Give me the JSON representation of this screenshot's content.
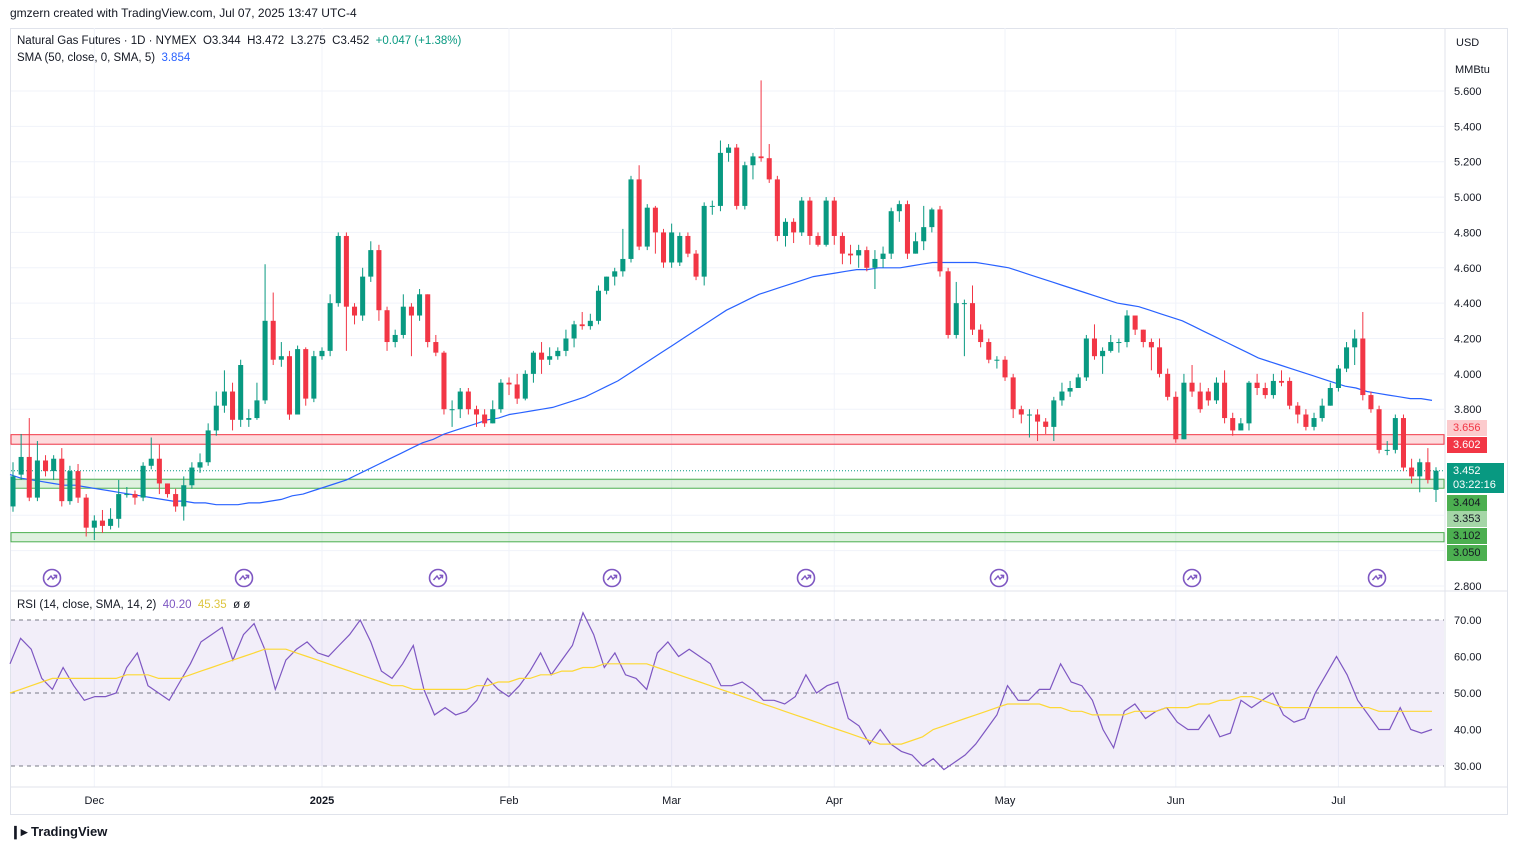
{
  "credit": "gmzern created with TradingView.com, Jul 07, 2025 13:47 UTC-4",
  "brand": "TradingView",
  "legend": {
    "symbol": "Natural Gas Futures · 1D · NYMEX",
    "open": "O3.344",
    "high": "H3.472",
    "low": "L3.275",
    "close": "C3.452",
    "change": "+0.047 (+1.38%)",
    "sma_label": "SMA (50, close, 0, SMA, 5)",
    "sma_value": "3.854",
    "rsi_label": "RSI (14, close, SMA, 14, 2)",
    "rsi_value": "40.20",
    "rsi_sma_value": "45.35",
    "rsi_extra": "ø ø"
  },
  "axis": {
    "currency": "USD",
    "unit": "MMBtu",
    "price_ticks": [
      "5.600",
      "5.400",
      "5.200",
      "5.000",
      "4.800",
      "4.600",
      "4.400",
      "4.200",
      "4.000",
      "3.800",
      "3.600",
      "3.400",
      "3.200",
      "3.000",
      "2.800"
    ],
    "rsi_ticks": [
      "70.00",
      "60.00",
      "50.00",
      "40.00",
      "30.00"
    ],
    "time_ticks": [
      "Dec",
      "2025",
      "Feb",
      "Mar",
      "Apr",
      "May",
      "Jun",
      "Jul"
    ]
  },
  "badges": {
    "price": "3.452",
    "countdown": "03:22:16",
    "zone_red_top": "3.656",
    "zone_red_bottom": "3.602",
    "zone_green_top": "3.404",
    "zone_green_bottom": "3.353",
    "zone_green2_top": "3.102",
    "zone_green2_bottom": "3.050"
  },
  "colors": {
    "up": "#089981",
    "down": "#f23645",
    "sma": "#2962ff",
    "rsi": "#7e57c2",
    "rsi_sma": "#fdd835",
    "zone_red": "#f23645",
    "zone_green": "#4caf50"
  },
  "chart_data": {
    "type": "candlestick",
    "y_range": [
      2.8,
      5.75
    ],
    "zones": [
      {
        "from": 3.602,
        "to": 3.656,
        "color": "red"
      },
      {
        "from": 3.353,
        "to": 3.404,
        "color": "green"
      },
      {
        "from": 3.05,
        "to": 3.102,
        "color": "green"
      }
    ],
    "candles": [
      [
        3.25,
        3.42,
        3.5,
        3.22
      ],
      [
        3.43,
        3.53,
        3.66,
        3.4
      ],
      [
        3.53,
        3.3,
        3.75,
        3.28
      ],
      [
        3.3,
        3.51,
        3.62,
        3.28
      ],
      [
        3.51,
        3.45,
        3.54,
        3.42
      ],
      [
        3.45,
        3.52,
        3.54,
        3.4
      ],
      [
        3.52,
        3.28,
        3.58,
        3.25
      ],
      [
        3.28,
        3.45,
        3.48,
        3.26
      ],
      [
        3.45,
        3.3,
        3.49,
        3.27
      ],
      [
        3.3,
        3.13,
        3.32,
        3.08
      ],
      [
        3.13,
        3.17,
        3.2,
        3.06
      ],
      [
        3.17,
        3.14,
        3.23,
        3.1
      ],
      [
        3.14,
        3.18,
        3.24,
        3.12
      ],
      [
        3.18,
        3.32,
        3.4,
        3.13
      ],
      [
        3.32,
        3.32,
        3.36,
        3.3
      ],
      [
        3.32,
        3.3,
        3.34,
        3.26
      ],
      [
        3.3,
        3.48,
        3.5,
        3.28
      ],
      [
        3.48,
        3.52,
        3.64,
        3.46
      ],
      [
        3.52,
        3.38,
        3.6,
        3.32
      ],
      [
        3.38,
        3.32,
        3.38,
        3.3
      ],
      [
        3.32,
        3.25,
        3.35,
        3.22
      ],
      [
        3.25,
        3.37,
        3.42,
        3.17
      ],
      [
        3.37,
        3.47,
        3.5,
        3.35
      ],
      [
        3.47,
        3.5,
        3.55,
        3.44
      ],
      [
        3.5,
        3.68,
        3.72,
        3.48
      ],
      [
        3.68,
        3.82,
        3.9,
        3.65
      ],
      [
        3.82,
        3.9,
        4.02,
        3.78
      ],
      [
        3.9,
        3.74,
        3.95,
        3.68
      ],
      [
        3.74,
        4.05,
        4.08,
        3.7
      ],
      [
        3.74,
        3.75,
        3.8,
        3.7
      ],
      [
        3.75,
        3.85,
        3.95,
        3.74
      ],
      [
        3.85,
        4.3,
        4.62,
        3.83
      ],
      [
        4.3,
        4.08,
        4.46,
        4.05
      ],
      [
        4.08,
        4.1,
        4.18,
        4.04
      ],
      [
        4.1,
        3.77,
        4.13,
        3.74
      ],
      [
        3.77,
        4.14,
        4.16,
        3.78
      ],
      [
        4.14,
        3.86,
        4.15,
        3.82
      ],
      [
        3.86,
        4.1,
        4.13,
        3.84
      ],
      [
        4.1,
        4.13,
        4.15,
        4.08
      ],
      [
        4.13,
        4.4,
        4.45,
        4.1
      ],
      [
        4.4,
        4.78,
        4.8,
        4.38
      ],
      [
        4.78,
        4.38,
        4.8,
        4.13
      ],
      [
        4.38,
        4.33,
        4.4,
        4.28
      ],
      [
        4.33,
        4.55,
        4.6,
        4.3
      ],
      [
        4.55,
        4.7,
        4.75,
        4.52
      ],
      [
        4.7,
        4.36,
        4.73,
        4.3
      ],
      [
        4.36,
        4.18,
        4.38,
        4.13
      ],
      [
        4.18,
        4.22,
        4.25,
        4.15
      ],
      [
        4.22,
        4.38,
        4.45,
        4.2
      ],
      [
        4.38,
        4.33,
        4.4,
        4.1
      ],
      [
        4.33,
        4.45,
        4.48,
        4.3
      ],
      [
        4.45,
        4.18,
        4.45,
        4.15
      ],
      [
        4.18,
        4.12,
        4.22,
        4.1
      ],
      [
        4.12,
        3.8,
        4.13,
        3.77
      ],
      [
        3.8,
        3.8,
        3.85,
        3.7
      ],
      [
        3.8,
        3.9,
        3.92,
        3.75
      ],
      [
        3.9,
        3.8,
        3.92,
        3.77
      ],
      [
        3.8,
        3.77,
        3.82,
        3.7
      ],
      [
        3.77,
        3.72,
        3.8,
        3.7
      ],
      [
        3.72,
        3.8,
        3.85,
        3.72
      ],
      [
        3.8,
        3.95,
        3.97,
        3.78
      ],
      [
        3.95,
        3.94,
        3.98,
        3.88
      ],
      [
        3.94,
        3.86,
        4.0,
        3.83
      ],
      [
        3.86,
        4.0,
        4.02,
        3.85
      ],
      [
        4.0,
        4.12,
        4.13,
        3.95
      ],
      [
        4.12,
        4.08,
        4.18,
        4.0
      ],
      [
        4.08,
        4.1,
        4.15,
        4.05
      ],
      [
        4.1,
        4.13,
        4.15,
        4.08
      ],
      [
        4.13,
        4.2,
        4.25,
        4.1
      ],
      [
        4.2,
        4.28,
        4.3,
        4.15
      ],
      [
        4.28,
        4.27,
        4.35,
        4.25
      ],
      [
        4.27,
        4.3,
        4.34,
        4.25
      ],
      [
        4.3,
        4.47,
        4.5,
        4.28
      ],
      [
        4.47,
        4.55,
        4.55,
        4.45
      ],
      [
        4.55,
        4.58,
        4.6,
        4.5
      ],
      [
        4.58,
        4.65,
        4.82,
        4.55
      ],
      [
        4.65,
        5.1,
        5.12,
        4.63
      ],
      [
        5.1,
        4.72,
        5.18,
        4.7
      ],
      [
        4.72,
        4.94,
        4.96,
        4.7
      ],
      [
        4.94,
        4.8,
        4.95,
        4.68
      ],
      [
        4.8,
        4.63,
        4.82,
        4.6
      ],
      [
        4.63,
        4.8,
        4.85,
        4.6
      ],
      [
        4.63,
        4.78,
        4.8,
        4.61
      ],
      [
        4.78,
        4.68,
        4.8,
        4.66
      ],
      [
        4.68,
        4.55,
        4.7,
        4.53
      ],
      [
        4.55,
        4.95,
        4.97,
        4.5
      ],
      [
        4.95,
        4.95,
        4.98,
        4.9
      ],
      [
        4.95,
        5.25,
        5.32,
        4.92
      ],
      [
        5.25,
        5.28,
        5.3,
        5.2
      ],
      [
        5.28,
        4.95,
        5.3,
        4.93
      ],
      [
        4.95,
        5.18,
        5.2,
        4.93
      ],
      [
        5.18,
        5.23,
        5.25,
        5.1
      ],
      [
        5.23,
        5.22,
        5.66,
        5.2
      ],
      [
        5.22,
        5.1,
        5.3,
        5.08
      ],
      [
        5.1,
        4.78,
        5.12,
        4.75
      ],
      [
        4.78,
        4.86,
        4.88,
        4.72
      ],
      [
        4.86,
        4.8,
        4.88,
        4.74
      ],
      [
        4.8,
        4.98,
        5.0,
        4.78
      ],
      [
        4.98,
        4.78,
        5.0,
        4.73
      ],
      [
        4.78,
        4.73,
        4.8,
        4.72
      ],
      [
        4.73,
        4.98,
        5.0,
        4.72
      ],
      [
        4.98,
        4.78,
        5.0,
        4.73
      ],
      [
        4.78,
        4.68,
        4.8,
        4.62
      ],
      [
        4.68,
        4.67,
        4.73,
        4.62
      ],
      [
        4.67,
        4.7,
        4.73,
        4.6
      ],
      [
        4.7,
        4.6,
        4.72,
        4.58
      ],
      [
        4.6,
        4.65,
        4.7,
        4.48
      ],
      [
        4.65,
        4.68,
        4.72,
        4.6
      ],
      [
        4.68,
        4.92,
        4.94,
        4.65
      ],
      [
        4.92,
        4.96,
        4.98,
        4.86
      ],
      [
        4.96,
        4.68,
        4.98,
        4.65
      ],
      [
        4.68,
        4.75,
        4.8,
        4.68
      ],
      [
        4.75,
        4.83,
        4.95,
        4.7
      ],
      [
        4.83,
        4.93,
        4.94,
        4.8
      ],
      [
        4.93,
        4.58,
        4.95,
        4.55
      ],
      [
        4.58,
        4.22,
        4.6,
        4.2
      ],
      [
        4.22,
        4.4,
        4.52,
        4.2
      ],
      [
        4.4,
        4.4,
        4.42,
        4.1
      ],
      [
        4.4,
        4.25,
        4.5,
        4.22
      ],
      [
        4.25,
        4.18,
        4.28,
        4.15
      ],
      [
        4.18,
        4.08,
        4.2,
        4.06
      ],
      [
        4.08,
        4.08,
        4.1,
        4.03
      ],
      [
        4.08,
        3.98,
        4.1,
        3.96
      ],
      [
        3.98,
        3.8,
        4.0,
        3.75
      ],
      [
        3.8,
        3.77,
        3.82,
        3.72
      ],
      [
        3.77,
        3.77,
        3.8,
        3.64
      ],
      [
        3.77,
        3.73,
        3.8,
        3.62
      ],
      [
        3.73,
        3.7,
        3.75,
        3.66
      ],
      [
        3.7,
        3.85,
        3.87,
        3.62
      ],
      [
        3.85,
        3.9,
        3.95,
        3.82
      ],
      [
        3.9,
        3.92,
        3.96,
        3.87
      ],
      [
        3.92,
        3.98,
        4.0,
        3.92
      ],
      [
        3.98,
        4.2,
        4.22,
        3.96
      ],
      [
        4.2,
        4.1,
        4.28,
        4.08
      ],
      [
        4.1,
        4.13,
        4.15,
        4.0
      ],
      [
        4.13,
        4.18,
        4.22,
        4.12
      ],
      [
        4.18,
        4.18,
        4.2,
        4.12
      ],
      [
        4.18,
        4.33,
        4.36,
        4.15
      ],
      [
        4.33,
        4.25,
        4.32,
        4.22
      ],
      [
        4.25,
        4.18,
        4.25,
        4.15
      ],
      [
        4.18,
        4.15,
        4.2,
        4.02
      ],
      [
        4.15,
        4.0,
        4.2,
        3.98
      ],
      [
        4.0,
        3.87,
        4.03,
        3.85
      ],
      [
        3.87,
        3.63,
        3.9,
        3.61
      ],
      [
        3.63,
        3.95,
        4.0,
        3.63
      ],
      [
        3.95,
        3.9,
        4.05,
        3.87
      ],
      [
        3.9,
        3.8,
        3.95,
        3.78
      ],
      [
        3.9,
        3.85,
        3.92,
        3.82
      ],
      [
        3.85,
        3.95,
        3.98,
        3.83
      ],
      [
        3.95,
        3.75,
        4.02,
        3.72
      ],
      [
        3.75,
        3.68,
        3.78,
        3.65
      ],
      [
        3.68,
        3.72,
        3.75,
        3.68
      ],
      [
        3.72,
        3.95,
        3.96,
        3.68
      ],
      [
        3.95,
        3.92,
        4.0,
        3.88
      ],
      [
        3.92,
        3.88,
        3.95,
        3.86
      ],
      [
        3.88,
        3.96,
        4.0,
        3.86
      ],
      [
        3.96,
        3.95,
        4.02,
        3.93
      ],
      [
        3.96,
        3.82,
        3.98,
        3.8
      ],
      [
        3.82,
        3.77,
        3.84,
        3.72
      ],
      [
        3.77,
        3.7,
        3.8,
        3.68
      ],
      [
        3.7,
        3.75,
        3.78,
        3.68
      ],
      [
        3.75,
        3.82,
        3.86,
        3.73
      ],
      [
        3.82,
        3.92,
        3.95,
        3.82
      ],
      [
        3.92,
        4.03,
        4.05,
        3.9
      ],
      [
        4.03,
        4.15,
        4.18,
        4.01
      ],
      [
        4.15,
        4.2,
        4.25,
        4.05
      ],
      [
        4.2,
        3.88,
        4.35,
        3.85
      ],
      [
        3.88,
        3.8,
        3.9,
        3.78
      ],
      [
        3.8,
        3.57,
        3.82,
        3.55
      ],
      [
        3.57,
        3.57,
        3.62,
        3.54
      ],
      [
        3.57,
        3.75,
        3.77,
        3.55
      ],
      [
        3.75,
        3.47,
        3.77,
        3.45
      ],
      [
        3.47,
        3.42,
        3.52,
        3.38
      ],
      [
        3.42,
        3.5,
        3.52,
        3.33
      ],
      [
        3.5,
        3.4,
        3.58,
        3.38
      ],
      [
        3.344,
        3.452,
        3.472,
        3.275
      ]
    ],
    "sma50": [
      3.43,
      3.41,
      3.4,
      3.39,
      3.38,
      3.37,
      3.37,
      3.36,
      3.35,
      3.34,
      3.33,
      3.32,
      3.31,
      3.3,
      3.29,
      3.28,
      3.28,
      3.27,
      3.27,
      3.26,
      3.26,
      3.26,
      3.27,
      3.27,
      3.28,
      3.29,
      3.31,
      3.32,
      3.34,
      3.36,
      3.38,
      3.4,
      3.43,
      3.46,
      3.49,
      3.52,
      3.55,
      3.58,
      3.61,
      3.63,
      3.66,
      3.68,
      3.7,
      3.72,
      3.74,
      3.75,
      3.77,
      3.78,
      3.79,
      3.8,
      3.81,
      3.83,
      3.85,
      3.87,
      3.9,
      3.93,
      3.96,
      4.0,
      4.04,
      4.08,
      4.12,
      4.16,
      4.2,
      4.24,
      4.28,
      4.32,
      4.36,
      4.39,
      4.42,
      4.45,
      4.47,
      4.49,
      4.51,
      4.53,
      4.55,
      4.56,
      4.57,
      4.58,
      4.59,
      4.59,
      4.6,
      4.6,
      4.6,
      4.61,
      4.62,
      4.63,
      4.63,
      4.63,
      4.63,
      4.63,
      4.62,
      4.61,
      4.6,
      4.58,
      4.56,
      4.54,
      4.52,
      4.5,
      4.48,
      4.46,
      4.44,
      4.42,
      4.4,
      4.39,
      4.38,
      4.36,
      4.34,
      4.32,
      4.3,
      4.27,
      4.24,
      4.21,
      4.18,
      4.15,
      4.12,
      4.09,
      4.07,
      4.05,
      4.03,
      4.01,
      3.99,
      3.97,
      3.95,
      3.93,
      3.92,
      3.9,
      3.89,
      3.88,
      3.87,
      3.86,
      3.86,
      3.85
    ],
    "rsi": [
      58,
      65,
      62,
      54,
      51,
      57,
      52,
      48,
      49,
      49,
      50,
      57,
      61,
      52,
      50,
      48,
      53,
      58,
      64,
      66,
      68,
      59,
      66,
      69,
      62,
      51,
      59,
      62,
      64,
      61,
      60,
      63,
      66,
      70,
      64,
      56,
      54,
      58,
      63,
      51,
      44,
      46,
      44,
      45,
      48,
      54,
      51,
      49,
      52,
      56,
      61,
      55,
      59,
      63,
      72,
      66,
      57,
      61,
      55,
      54,
      51,
      61,
      64,
      60,
      62,
      60,
      58,
      52,
      52,
      53,
      51,
      48,
      48,
      47,
      49,
      55,
      50,
      52,
      53,
      43,
      41,
      36,
      40,
      36,
      34,
      33,
      30,
      32,
      29,
      31,
      33,
      36,
      40,
      44,
      52,
      48,
      48,
      51,
      51,
      58,
      53,
      52,
      48,
      40,
      35,
      45,
      47,
      43,
      45,
      46,
      42,
      40,
      40,
      44,
      38,
      39,
      48,
      46,
      48,
      50,
      44,
      42,
      43,
      50,
      55,
      60,
      55,
      48,
      44,
      40,
      40,
      46,
      40,
      39,
      40
    ],
    "rsi_sma": [
      50,
      51,
      52,
      53,
      54,
      54,
      54,
      54,
      54,
      54,
      54,
      55,
      55,
      55,
      54,
      54,
      54,
      55,
      56,
      57,
      58,
      59,
      60,
      61,
      62,
      62,
      62,
      61,
      60,
      59,
      58,
      57,
      56,
      55,
      54,
      53,
      52,
      52,
      51,
      51,
      51,
      51,
      51,
      51,
      52,
      52,
      53,
      53,
      54,
      54,
      55,
      55,
      56,
      56,
      57,
      57,
      58,
      58,
      58,
      58,
      58,
      57,
      56,
      55,
      54,
      53,
      52,
      51,
      50,
      49,
      48,
      47,
      46,
      45,
      44,
      43,
      42,
      41,
      40,
      39,
      38,
      37,
      36,
      36,
      36,
      37,
      38,
      40,
      41,
      42,
      43,
      44,
      45,
      46,
      47,
      47,
      47,
      47,
      46,
      46,
      45,
      45,
      44,
      44,
      44,
      44,
      45,
      45,
      45,
      46,
      46,
      46,
      47,
      47,
      48,
      48,
      49,
      49,
      48,
      47,
      46,
      46,
      46,
      46,
      46,
      46,
      46,
      46,
      46,
      45,
      45,
      45,
      45,
      45,
      45
    ],
    "title": "",
    "grid": true
  }
}
